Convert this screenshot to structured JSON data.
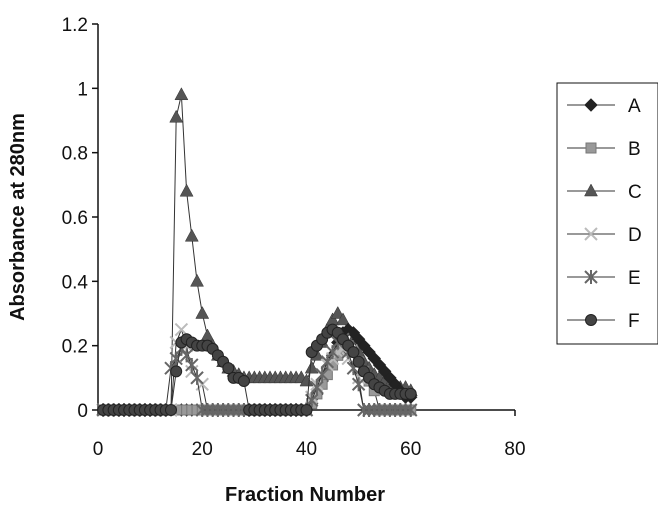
{
  "chart_data": {
    "type": "line",
    "title": "",
    "xlabel": "Fraction Number",
    "ylabel": "Absorbance at 280nm",
    "xlim": [
      0,
      80
    ],
    "ylim": [
      0,
      1.2
    ],
    "x_ticks": [
      "0",
      "20",
      "40",
      "60",
      "80"
    ],
    "y_ticks": [
      "0",
      "0.2",
      "0.4",
      "0.6",
      "0.8",
      "1",
      "1.2"
    ],
    "grid": false,
    "legend_position": "right",
    "x": [
      1,
      2,
      3,
      4,
      5,
      6,
      7,
      8,
      9,
      10,
      11,
      12,
      13,
      14,
      15,
      16,
      17,
      18,
      19,
      20,
      21,
      22,
      23,
      24,
      25,
      26,
      27,
      28,
      29,
      30,
      31,
      32,
      33,
      34,
      35,
      36,
      37,
      38,
      39,
      40,
      41,
      42,
      43,
      44,
      45,
      46,
      47,
      48,
      49,
      50,
      51,
      52,
      53,
      54,
      55,
      56,
      57,
      58,
      59,
      60
    ],
    "series": [
      {
        "name": "A",
        "marker": "diamond",
        "color": "#222222",
        "values": [
          0,
          0,
          0,
          0,
          0,
          0,
          0,
          0,
          0,
          0,
          0,
          0,
          0,
          0,
          0,
          0,
          0,
          0,
          0,
          0,
          0,
          0,
          0,
          0,
          0,
          0,
          0,
          0,
          0,
          0,
          0,
          0,
          0,
          0,
          0,
          0,
          0,
          0,
          0,
          0,
          0.02,
          0.05,
          0.09,
          0.13,
          0.17,
          0.21,
          0.24,
          0.25,
          0.24,
          0.22,
          0.2,
          0.18,
          0.16,
          0.14,
          0.12,
          0.1,
          0.08,
          0.06,
          0.04,
          0.04
        ]
      },
      {
        "name": "B",
        "marker": "square",
        "color": "#999999",
        "values": [
          0,
          0,
          0,
          0,
          0,
          0,
          0,
          0,
          0,
          0,
          0,
          0,
          0,
          0,
          0,
          0,
          0,
          0,
          0,
          0,
          0,
          0,
          0,
          0,
          0,
          0,
          0,
          0,
          0,
          0,
          0,
          0,
          0,
          0,
          0,
          0,
          0,
          0,
          0,
          0,
          0.02,
          0.05,
          0.08,
          0.11,
          0.14,
          0.17,
          0.19,
          0.2,
          0.18,
          0.15,
          0.12,
          0.09,
          0.06,
          0,
          0,
          0,
          0,
          0,
          0,
          0
        ]
      },
      {
        "name": "C",
        "marker": "triangle",
        "color": "#555555",
        "values": [
          0,
          0,
          0,
          0,
          0,
          0,
          0,
          0,
          0,
          0,
          0,
          0,
          0,
          0,
          0.91,
          0.98,
          0.68,
          0.54,
          0.4,
          0.3,
          0.23,
          0.2,
          0.17,
          0.15,
          0.13,
          0.12,
          0.11,
          0.1,
          0.1,
          0.1,
          0.1,
          0.1,
          0.1,
          0.1,
          0.1,
          0.1,
          0.1,
          0.1,
          0.1,
          0.09,
          0.13,
          0.17,
          0.21,
          0.25,
          0.28,
          0.3,
          0.28,
          0.25,
          0.22,
          0.18,
          0.15,
          0.13,
          0.11,
          0.1,
          0.09,
          0.08,
          0.08,
          0.07,
          0.07,
          0.06
        ]
      },
      {
        "name": "D",
        "marker": "x",
        "color": "#bbbbbb",
        "values": [
          0,
          0,
          0,
          0,
          0,
          0,
          0,
          0,
          0,
          0,
          0,
          0,
          0,
          0,
          0.21,
          0.25,
          0.2,
          0.12,
          0.1,
          0.08,
          0,
          0,
          0,
          0,
          0,
          0,
          0,
          0,
          0,
          0,
          0,
          0,
          0,
          0,
          0,
          0,
          0,
          0,
          0,
          0,
          0.04,
          0.08,
          0.11,
          0.14,
          0.16,
          0.18,
          0.19,
          0.16,
          0.13,
          0.1,
          0,
          0,
          0,
          0,
          0,
          0,
          0,
          0,
          0,
          0
        ]
      },
      {
        "name": "E",
        "marker": "asterisk",
        "color": "#666666",
        "values": [
          0,
          0,
          0,
          0,
          0,
          0,
          0,
          0,
          0,
          0,
          0,
          0,
          0,
          0.13,
          0.16,
          0.19,
          0.17,
          0.14,
          0.1,
          0,
          0,
          0,
          0,
          0,
          0,
          0,
          0,
          0,
          0,
          0,
          0,
          0,
          0,
          0,
          0,
          0,
          0,
          0,
          0,
          0,
          0.03,
          0.07,
          0.11,
          0.15,
          0.18,
          0.21,
          0.22,
          0.18,
          0.13,
          0.08,
          0,
          0,
          0,
          0,
          0,
          0,
          0,
          0,
          0,
          0
        ]
      },
      {
        "name": "F",
        "marker": "circle",
        "color": "#444444",
        "values": [
          0,
          0,
          0,
          0,
          0,
          0,
          0,
          0,
          0,
          0,
          0,
          0,
          0,
          0,
          0.12,
          0.21,
          0.22,
          0.21,
          0.2,
          0.2,
          0.2,
          0.19,
          0.17,
          0.15,
          0.13,
          0.1,
          0.1,
          0.09,
          0,
          0,
          0,
          0,
          0,
          0,
          0,
          0,
          0,
          0,
          0,
          0,
          0.18,
          0.2,
          0.22,
          0.24,
          0.25,
          0.24,
          0.22,
          0.2,
          0.18,
          0.15,
          0.12,
          0.1,
          0.08,
          0.07,
          0.06,
          0.05,
          0.05,
          0.05,
          0.05,
          0.05
        ]
      }
    ]
  }
}
